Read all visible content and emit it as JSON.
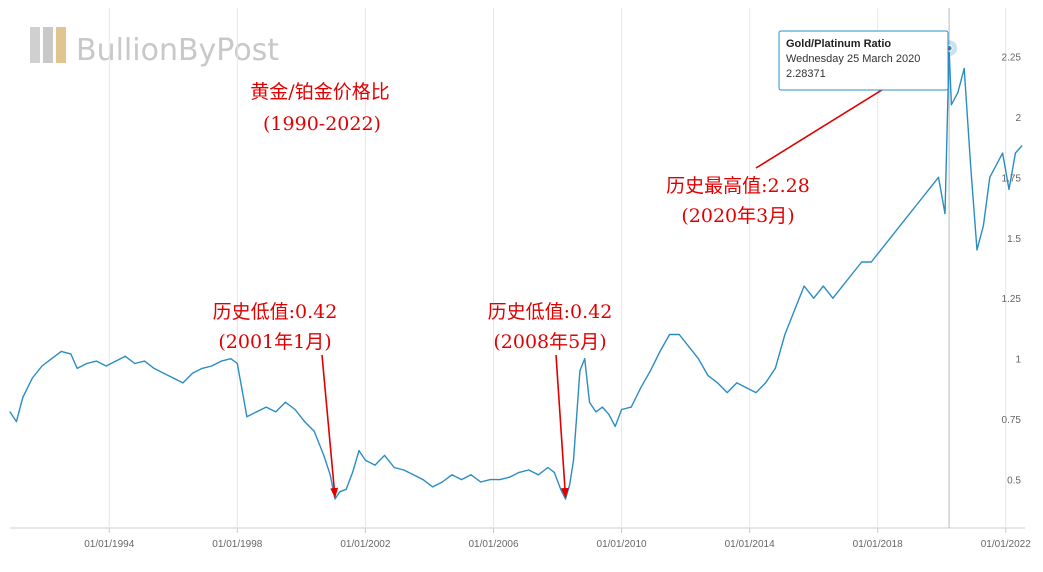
{
  "branding": {
    "logo_text": "BullionByPost"
  },
  "chart_data": {
    "type": "line",
    "title": "黄金/铂金价格比",
    "subtitle": "(1990-2022)",
    "xlabel": "",
    "ylabel": "",
    "xlim": [
      1990.9,
      2022.6
    ],
    "ylim": [
      0.3,
      2.45
    ],
    "x_ticks": [
      {
        "value": 1994.0,
        "label": "01/01/1994"
      },
      {
        "value": 1998.0,
        "label": "01/01/1998"
      },
      {
        "value": 2002.0,
        "label": "01/01/2002"
      },
      {
        "value": 2006.0,
        "label": "01/01/2006"
      },
      {
        "value": 2010.0,
        "label": "01/01/2010"
      },
      {
        "value": 2014.0,
        "label": "01/01/2014"
      },
      {
        "value": 2018.0,
        "label": "01/01/2018"
      },
      {
        "value": 2022.0,
        "label": "01/01/2022"
      }
    ],
    "y_ticks": [
      {
        "value": 0.5,
        "label": "0.5"
      },
      {
        "value": 0.75,
        "label": "0.75"
      },
      {
        "value": 1.0,
        "label": "1"
      },
      {
        "value": 1.25,
        "label": "1.25"
      },
      {
        "value": 1.5,
        "label": "1.5"
      },
      {
        "value": 1.75,
        "label": "1.75"
      },
      {
        "value": 2.0,
        "label": "2"
      },
      {
        "value": 2.25,
        "label": "2.25"
      }
    ],
    "grid": "vertical",
    "line_color": "#2b8cc4",
    "series": [
      {
        "x": [
          1990.9,
          1991.1,
          1991.3,
          1991.6,
          1991.9,
          1992.2,
          1992.5,
          1992.8,
          1993.0,
          1993.3,
          1993.6,
          1993.9,
          1994.2,
          1994.5,
          1994.8,
          1995.1,
          1995.4,
          1995.7,
          1996.0,
          1996.3,
          1996.6,
          1996.9,
          1997.2,
          1997.5,
          1997.8,
          1998.0,
          1998.3,
          1998.6,
          1998.9,
          1999.2,
          1999.5,
          1999.8,
          2000.1,
          2000.4,
          2000.7,
          2000.9,
          2001.05,
          2001.2,
          2001.4,
          2001.6,
          2001.8,
          2002.0,
          2002.3,
          2002.6,
          2002.9,
          2003.2,
          2003.5,
          2003.8,
          2004.1,
          2004.4,
          2004.7,
          2005.0,
          2005.3,
          2005.6,
          2005.9,
          2006.2,
          2006.5,
          2006.8,
          2007.1,
          2007.4,
          2007.7,
          2007.9,
          2008.1,
          2008.25,
          2008.38,
          2008.5,
          2008.7,
          2008.85,
          2009.0,
          2009.2,
          2009.4,
          2009.6,
          2009.8,
          2010.0,
          2010.3,
          2010.6,
          2010.9,
          2011.2,
          2011.5,
          2011.8,
          2012.1,
          2012.4,
          2012.7,
          2013.0,
          2013.3,
          2013.6,
          2013.9,
          2014.2,
          2014.5,
          2014.8,
          2015.1,
          2015.4,
          2015.7,
          2016.0,
          2016.3,
          2016.6,
          2016.9,
          2017.2,
          2017.5,
          2017.8,
          2018.1,
          2018.4,
          2018.7,
          2019.0,
          2019.3,
          2019.6,
          2019.9,
          2020.1,
          2020.23,
          2020.3,
          2020.5,
          2020.7,
          2020.9,
          2021.1,
          2021.3,
          2021.5,
          2021.7,
          2021.9,
          2022.1,
          2022.3,
          2022.5
        ],
        "y": [
          0.78,
          0.74,
          0.84,
          0.92,
          0.97,
          1.0,
          1.03,
          1.02,
          0.96,
          0.98,
          0.99,
          0.97,
          0.99,
          1.01,
          0.98,
          0.99,
          0.96,
          0.94,
          0.92,
          0.9,
          0.94,
          0.96,
          0.97,
          0.99,
          1.0,
          0.98,
          0.76,
          0.78,
          0.8,
          0.78,
          0.82,
          0.79,
          0.74,
          0.7,
          0.6,
          0.52,
          0.42,
          0.45,
          0.46,
          0.53,
          0.62,
          0.58,
          0.56,
          0.6,
          0.55,
          0.54,
          0.52,
          0.5,
          0.47,
          0.49,
          0.52,
          0.5,
          0.52,
          0.49,
          0.5,
          0.5,
          0.51,
          0.53,
          0.54,
          0.52,
          0.55,
          0.53,
          0.46,
          0.42,
          0.48,
          0.58,
          0.95,
          1.0,
          0.82,
          0.78,
          0.8,
          0.77,
          0.72,
          0.79,
          0.8,
          0.88,
          0.95,
          1.03,
          1.1,
          1.1,
          1.05,
          1.0,
          0.93,
          0.9,
          0.86,
          0.9,
          0.88,
          0.86,
          0.9,
          0.96,
          1.1,
          1.2,
          1.3,
          1.25,
          1.3,
          1.25,
          1.3,
          1.35,
          1.4,
          1.4,
          1.45,
          1.5,
          1.55,
          1.6,
          1.65,
          1.7,
          1.75,
          1.6,
          2.28,
          2.05,
          2.1,
          2.2,
          1.8,
          1.45,
          1.55,
          1.75,
          1.8,
          1.85,
          1.7,
          1.85,
          1.88
        ]
      }
    ],
    "highlight_point": {
      "x": 2020.23,
      "y": 2.28371
    },
    "tooltip": {
      "title": "Gold/Platinum Ratio",
      "date": "Wednesday 25 March 2020",
      "value": "2.28371"
    },
    "annotations": [
      {
        "line1": "历史低值:0.42",
        "line2": "(2001年1月)",
        "target": {
          "x": 2001.05,
          "y": 0.42
        }
      },
      {
        "line1": "历史低值:0.42",
        "line2": "(2008年5月)",
        "target": {
          "x": 2008.25,
          "y": 0.42
        }
      },
      {
        "line1": "历史最高值:2.28",
        "line2": "(2020年3月)",
        "target": {
          "x": 2020.23,
          "y": 2.28371
        }
      }
    ],
    "annotation_color": "#e00000"
  }
}
